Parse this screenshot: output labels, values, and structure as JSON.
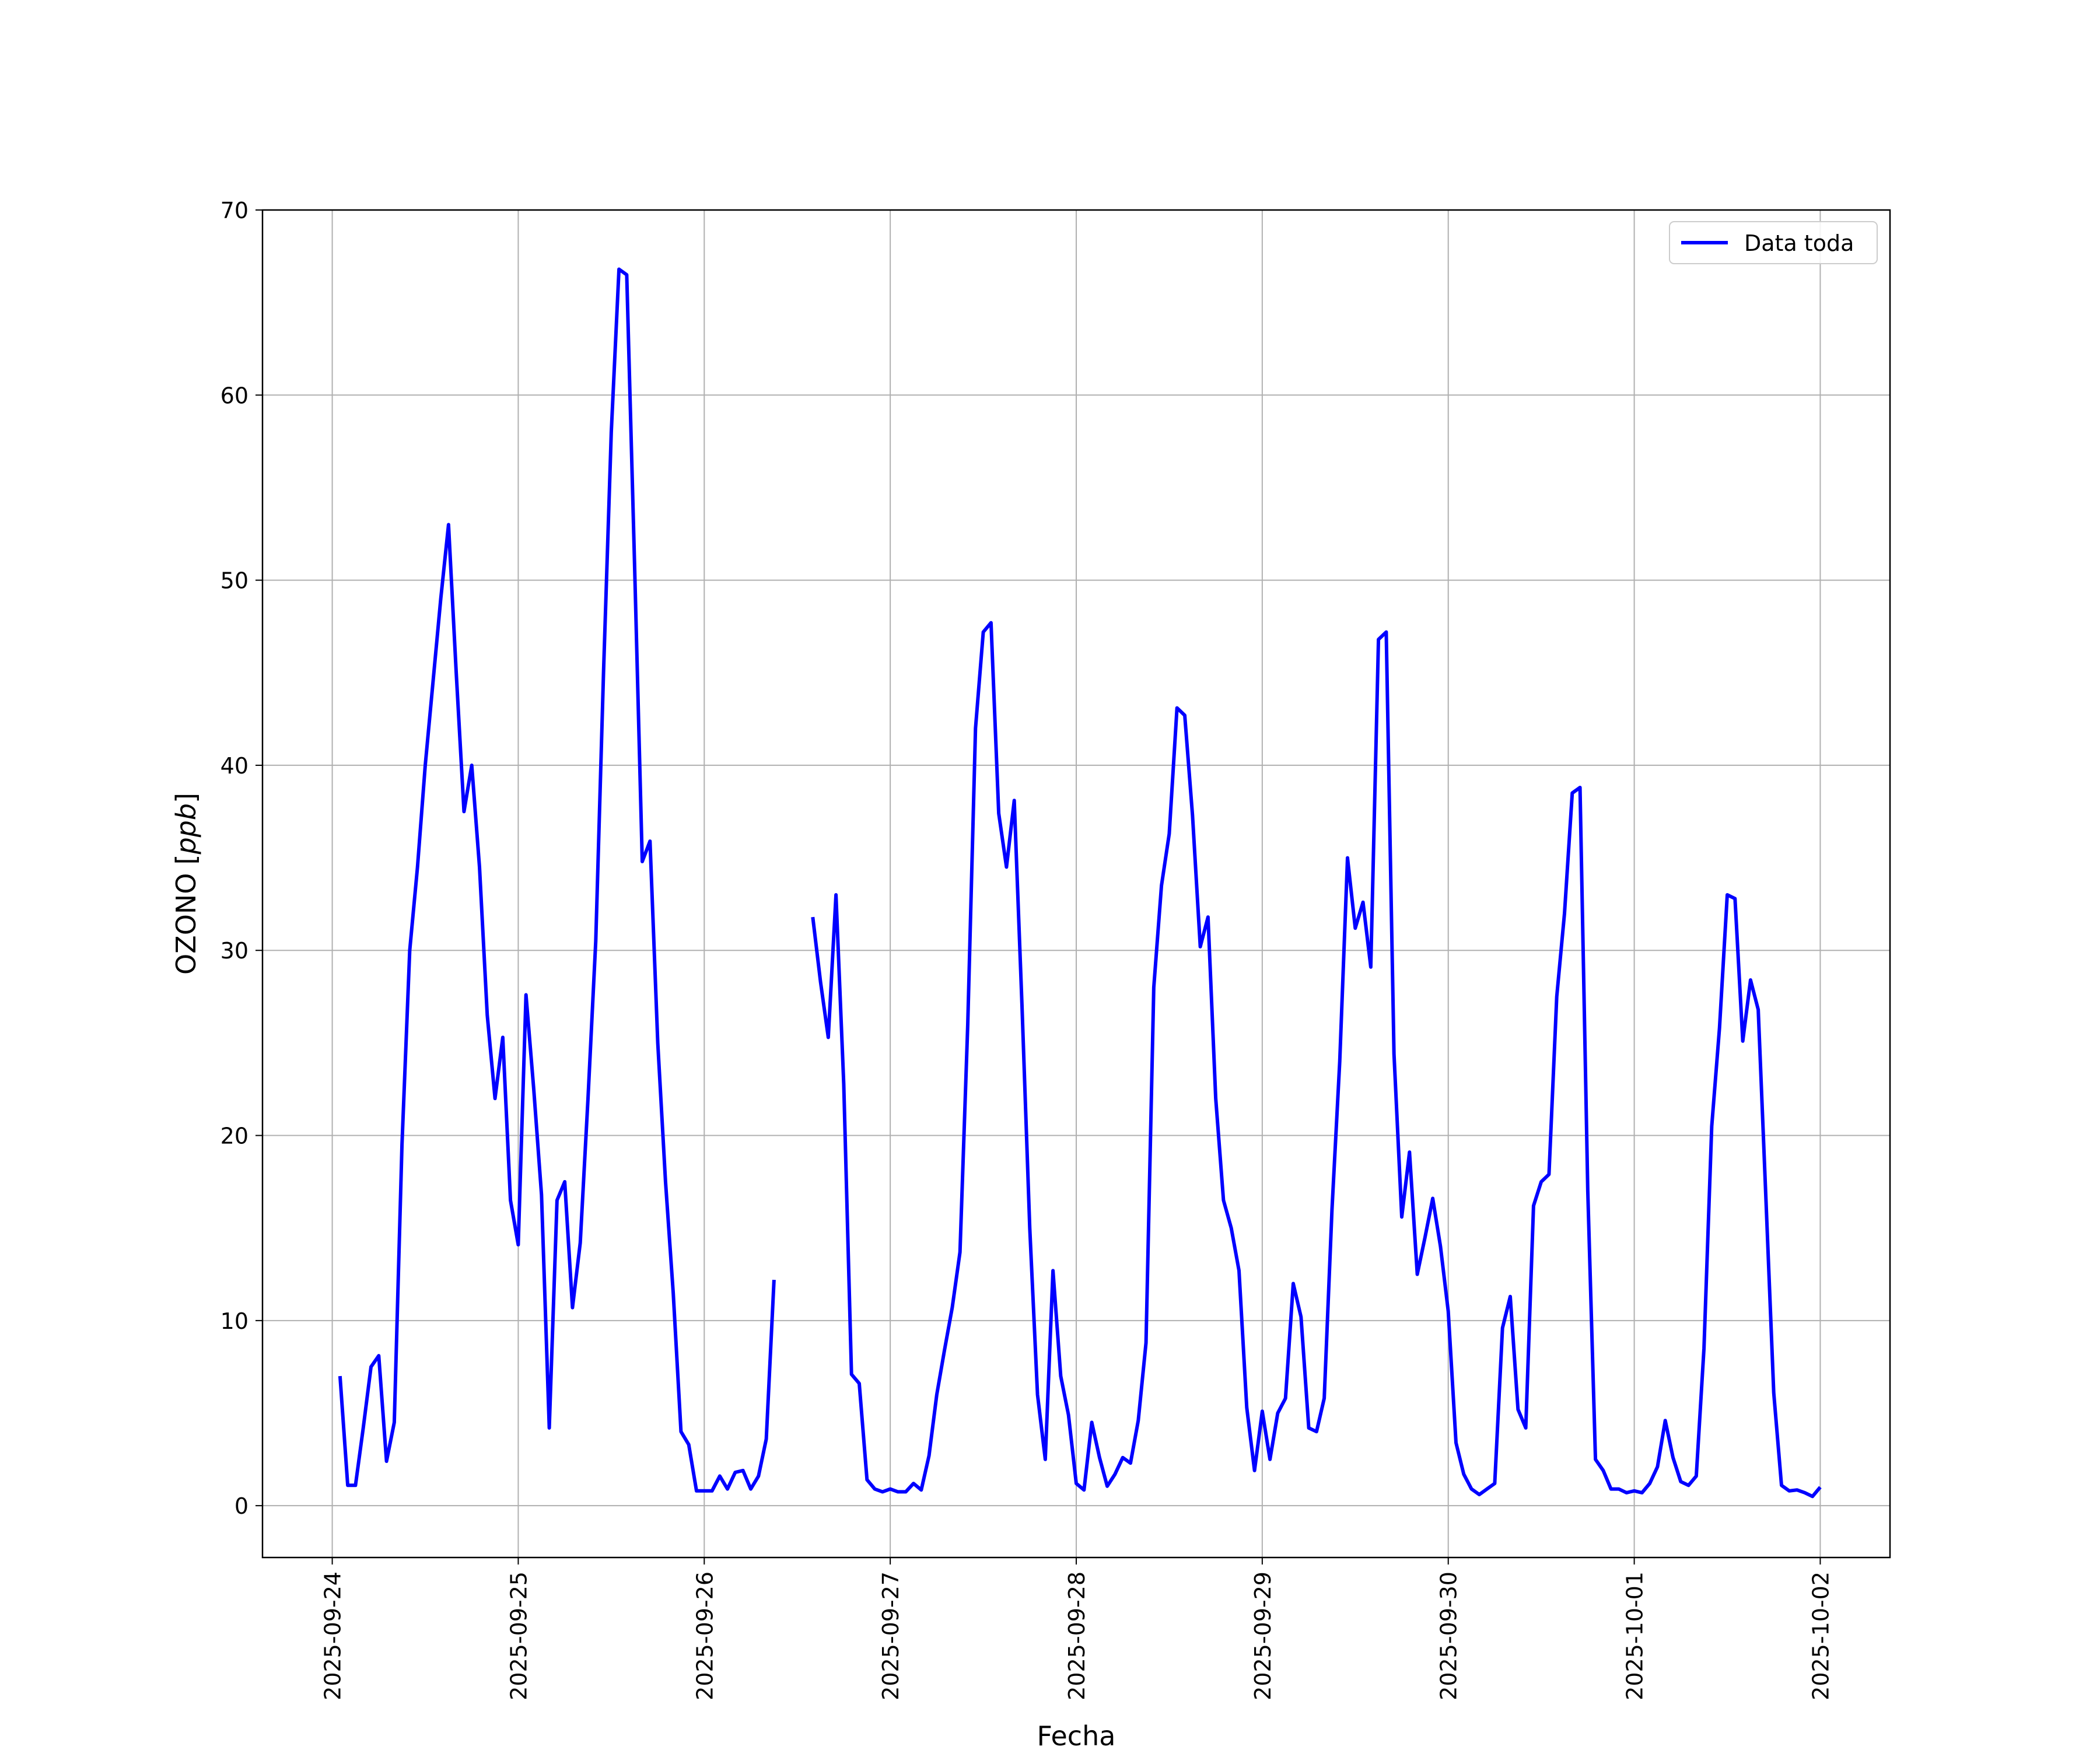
{
  "chart_data": {
    "type": "line",
    "title": "",
    "xlabel": "Fecha",
    "ylabel": "OZONO",
    "ylabel_unit": "ppb",
    "ylabel_open": "[",
    "ylabel_close": "]",
    "xlim": [
      "2025-09-23 15:00",
      "2025-10-02 09:00"
    ],
    "ylim": [
      -2.8,
      70
    ],
    "x_ticks": [
      "2025-09-24",
      "2025-09-25",
      "2025-09-26",
      "2025-09-27",
      "2025-09-28",
      "2025-09-29",
      "2025-09-30",
      "2025-10-01",
      "2025-10-02"
    ],
    "y_ticks": [
      0,
      10,
      20,
      30,
      40,
      50,
      60,
      70
    ],
    "grid": true,
    "legend_position": "top-right",
    "series": [
      {
        "name": "Data toda",
        "color": "#0000ff",
        "segments": [
          [
            [
              "2025-09-24 01:00",
              7.0
            ],
            [
              "2025-09-24 02:00",
              1.1
            ],
            [
              "2025-09-24 03:00",
              1.1
            ],
            [
              "2025-09-24 04:00",
              4.2
            ],
            [
              "2025-09-24 05:00",
              7.5
            ],
            [
              "2025-09-24 06:00",
              8.1
            ],
            [
              "2025-09-24 07:00",
              2.4
            ],
            [
              "2025-09-24 08:00",
              4.5
            ],
            [
              "2025-09-24 09:00",
              19.5
            ],
            [
              "2025-09-24 10:00",
              30.0
            ],
            [
              "2025-09-24 11:00",
              34.5
            ],
            [
              "2025-09-24 12:00",
              40.0
            ],
            [
              "2025-09-24 13:00",
              44.5
            ],
            [
              "2025-09-24 14:00",
              49.0
            ],
            [
              "2025-09-24 15:00",
              53.0
            ],
            [
              "2025-09-24 16:00",
              45.0
            ],
            [
              "2025-09-24 17:00",
              37.5
            ],
            [
              "2025-09-24 18:00",
              40.0
            ],
            [
              "2025-09-24 19:00",
              34.5
            ],
            [
              "2025-09-24 20:00",
              26.5
            ],
            [
              "2025-09-24 21:00",
              22.0
            ],
            [
              "2025-09-24 22:00",
              25.3
            ],
            [
              "2025-09-24 23:00",
              16.5
            ],
            [
              "2025-09-25 00:00",
              14.1
            ],
            [
              "2025-09-25 01:00",
              27.6
            ],
            [
              "2025-09-25 02:00",
              22.5
            ],
            [
              "2025-09-25 03:00",
              16.8
            ],
            [
              "2025-09-25 04:00",
              4.2
            ],
            [
              "2025-09-25 05:00",
              16.5
            ],
            [
              "2025-09-25 06:00",
              17.5
            ],
            [
              "2025-09-25 07:00",
              10.7
            ],
            [
              "2025-09-25 08:00",
              14.2
            ],
            [
              "2025-09-25 09:00",
              22.0
            ],
            [
              "2025-09-25 10:00",
              30.5
            ],
            [
              "2025-09-25 11:00",
              45.0
            ],
            [
              "2025-09-25 12:00",
              58.0
            ],
            [
              "2025-09-25 13:00",
              66.8
            ],
            [
              "2025-09-25 14:00",
              66.5
            ],
            [
              "2025-09-25 15:00",
              51.0
            ],
            [
              "2025-09-25 16:00",
              34.8
            ],
            [
              "2025-09-25 17:00",
              35.9
            ],
            [
              "2025-09-25 18:00",
              25.0
            ],
            [
              "2025-09-25 19:00",
              17.5
            ],
            [
              "2025-09-25 20:00",
              11.5
            ],
            [
              "2025-09-25 21:00",
              4.0
            ],
            [
              "2025-09-25 22:00",
              3.3
            ],
            [
              "2025-09-25 23:00",
              0.8
            ],
            [
              "2025-09-26 00:00",
              0.8
            ],
            [
              "2025-09-26 01:00",
              0.8
            ],
            [
              "2025-09-26 02:00",
              1.6
            ],
            [
              "2025-09-26 03:00",
              0.9
            ],
            [
              "2025-09-26 04:00",
              1.8
            ],
            [
              "2025-09-26 05:00",
              1.9
            ],
            [
              "2025-09-26 06:00",
              0.9
            ],
            [
              "2025-09-26 07:00",
              1.6
            ],
            [
              "2025-09-26 08:00",
              3.6
            ],
            [
              "2025-09-26 09:00",
              12.2
            ]
          ],
          [
            [
              "2025-09-26 14:00",
              31.8
            ],
            [
              "2025-09-26 15:00",
              28.3
            ],
            [
              "2025-09-26 16:00",
              25.3
            ],
            [
              "2025-09-26 17:00",
              33.0
            ],
            [
              "2025-09-26 18:00",
              22.8
            ],
            [
              "2025-09-26 19:00",
              7.1
            ],
            [
              "2025-09-26 20:00",
              6.6
            ],
            [
              "2025-09-26 21:00",
              1.4
            ],
            [
              "2025-09-26 22:00",
              0.9
            ],
            [
              "2025-09-26 23:00",
              0.75
            ],
            [
              "2025-09-27 00:00",
              0.9
            ],
            [
              "2025-09-27 01:00",
              0.75
            ],
            [
              "2025-09-27 02:00",
              0.75
            ],
            [
              "2025-09-27 03:00",
              1.2
            ],
            [
              "2025-09-27 04:00",
              0.85
            ],
            [
              "2025-09-27 05:00",
              2.7
            ],
            [
              "2025-09-27 06:00",
              6.0
            ],
            [
              "2025-09-27 07:00",
              8.4
            ],
            [
              "2025-09-27 08:00",
              10.7
            ],
            [
              "2025-09-27 09:00",
              13.7
            ],
            [
              "2025-09-27 10:00",
              26.0
            ],
            [
              "2025-09-27 11:00",
              42.0
            ],
            [
              "2025-09-27 12:00",
              47.2
            ],
            [
              "2025-09-27 13:00",
              47.7
            ],
            [
              "2025-09-27 14:00",
              37.4
            ],
            [
              "2025-09-27 15:00",
              34.5
            ],
            [
              "2025-09-27 16:00",
              38.1
            ],
            [
              "2025-09-27 17:00",
              27.0
            ],
            [
              "2025-09-27 18:00",
              15.0
            ],
            [
              "2025-09-27 19:00",
              6.0
            ],
            [
              "2025-09-27 20:00",
              2.5
            ],
            [
              "2025-09-27 21:00",
              12.7
            ],
            [
              "2025-09-27 22:00",
              7.0
            ],
            [
              "2025-09-27 23:00",
              4.9
            ],
            [
              "2025-09-28 00:00",
              1.2
            ],
            [
              "2025-09-28 01:00",
              0.85
            ],
            [
              "2025-09-28 02:00",
              4.5
            ],
            [
              "2025-09-28 03:00",
              2.6
            ],
            [
              "2025-09-28 04:00",
              1.05
            ],
            [
              "2025-09-28 05:00",
              1.7
            ],
            [
              "2025-09-28 06:00",
              2.6
            ],
            [
              "2025-09-28 07:00",
              2.3
            ],
            [
              "2025-09-28 08:00",
              4.6
            ],
            [
              "2025-09-28 09:00",
              8.8
            ],
            [
              "2025-09-28 10:00",
              28.0
            ],
            [
              "2025-09-28 11:00",
              33.5
            ],
            [
              "2025-09-28 12:00",
              36.3
            ],
            [
              "2025-09-28 13:00",
              43.1
            ],
            [
              "2025-09-28 14:00",
              42.7
            ],
            [
              "2025-09-28 15:00",
              37.3
            ],
            [
              "2025-09-28 16:00",
              30.2
            ],
            [
              "2025-09-28 17:00",
              31.8
            ],
            [
              "2025-09-28 18:00",
              22.0
            ],
            [
              "2025-09-28 19:00",
              16.5
            ],
            [
              "2025-09-28 20:00",
              15.0
            ],
            [
              "2025-09-28 21:00",
              12.7
            ],
            [
              "2025-09-28 22:00",
              5.3
            ],
            [
              "2025-09-28 23:00",
              1.9
            ],
            [
              "2025-09-29 00:00",
              5.1
            ],
            [
              "2025-09-29 01:00",
              2.5
            ],
            [
              "2025-09-29 02:00",
              5.0
            ],
            [
              "2025-09-29 03:00",
              5.8
            ],
            [
              "2025-09-29 04:00",
              12.0
            ],
            [
              "2025-09-29 05:00",
              10.2
            ],
            [
              "2025-09-29 06:00",
              4.2
            ],
            [
              "2025-09-29 07:00",
              4.0
            ],
            [
              "2025-09-29 08:00",
              5.8
            ],
            [
              "2025-09-29 09:00",
              16.0
            ],
            [
              "2025-09-29 10:00",
              24.0
            ],
            [
              "2025-09-29 11:00",
              35.0
            ],
            [
              "2025-09-29 12:00",
              31.2
            ],
            [
              "2025-09-29 13:00",
              32.6
            ],
            [
              "2025-09-29 14:00",
              29.1
            ],
            [
              "2025-09-29 15:00",
              46.8
            ],
            [
              "2025-09-29 16:00",
              47.2
            ],
            [
              "2025-09-29 17:00",
              24.4
            ],
            [
              "2025-09-29 18:00",
              15.6
            ],
            [
              "2025-09-29 19:00",
              19.1
            ],
            [
              "2025-09-29 20:00",
              12.5
            ],
            [
              "2025-09-29 21:00",
              14.5
            ],
            [
              "2025-09-29 22:00",
              16.6
            ],
            [
              "2025-09-29 23:00",
              14.0
            ],
            [
              "2025-09-30 00:00",
              10.5
            ],
            [
              "2025-09-30 01:00",
              3.4
            ],
            [
              "2025-09-30 02:00",
              1.7
            ],
            [
              "2025-09-30 03:00",
              0.9
            ],
            [
              "2025-09-30 04:00",
              0.6
            ],
            [
              "2025-09-30 05:00",
              0.9
            ],
            [
              "2025-09-30 06:00",
              1.2
            ],
            [
              "2025-09-30 07:00",
              9.6
            ],
            [
              "2025-09-30 08:00",
              11.3
            ],
            [
              "2025-09-30 09:00",
              5.2
            ],
            [
              "2025-09-30 10:00",
              4.2
            ],
            [
              "2025-09-30 11:00",
              16.2
            ],
            [
              "2025-09-30 12:00",
              17.5
            ],
            [
              "2025-09-30 13:00",
              17.9
            ],
            [
              "2025-09-30 14:00",
              27.5
            ],
            [
              "2025-09-30 15:00",
              32.0
            ],
            [
              "2025-09-30 16:00",
              38.5
            ],
            [
              "2025-09-30 17:00",
              38.8
            ],
            [
              "2025-09-30 18:00",
              17.0
            ],
            [
              "2025-09-30 19:00",
              2.5
            ],
            [
              "2025-09-30 20:00",
              1.9
            ],
            [
              "2025-09-30 21:00",
              0.9
            ],
            [
              "2025-09-30 22:00",
              0.9
            ],
            [
              "2025-09-30 23:00",
              0.7
            ],
            [
              "2025-10-01 00:00",
              0.8
            ],
            [
              "2025-10-01 01:00",
              0.7
            ],
            [
              "2025-10-01 02:00",
              1.2
            ],
            [
              "2025-10-01 03:00",
              2.1
            ],
            [
              "2025-10-01 04:00",
              4.6
            ],
            [
              "2025-10-01 05:00",
              2.6
            ],
            [
              "2025-10-01 06:00",
              1.3
            ],
            [
              "2025-10-01 07:00",
              1.1
            ],
            [
              "2025-10-01 08:00",
              1.6
            ],
            [
              "2025-10-01 09:00",
              8.5
            ],
            [
              "2025-10-01 10:00",
              20.5
            ],
            [
              "2025-10-01 11:00",
              25.8
            ],
            [
              "2025-10-01 12:00",
              33.0
            ],
            [
              "2025-10-01 13:00",
              32.8
            ],
            [
              "2025-10-01 14:00",
              25.1
            ],
            [
              "2025-10-01 15:00",
              28.4
            ],
            [
              "2025-10-01 16:00",
              26.8
            ],
            [
              "2025-10-01 17:00",
              16.5
            ],
            [
              "2025-10-01 18:00",
              6.1
            ],
            [
              "2025-10-01 19:00",
              1.1
            ],
            [
              "2025-10-01 20:00",
              0.8
            ],
            [
              "2025-10-01 21:00",
              0.85
            ],
            [
              "2025-10-01 22:00",
              0.7
            ],
            [
              "2025-10-01 23:00",
              0.5
            ],
            [
              "2025-10-02 00:00",
              1.0
            ]
          ]
        ]
      }
    ]
  }
}
